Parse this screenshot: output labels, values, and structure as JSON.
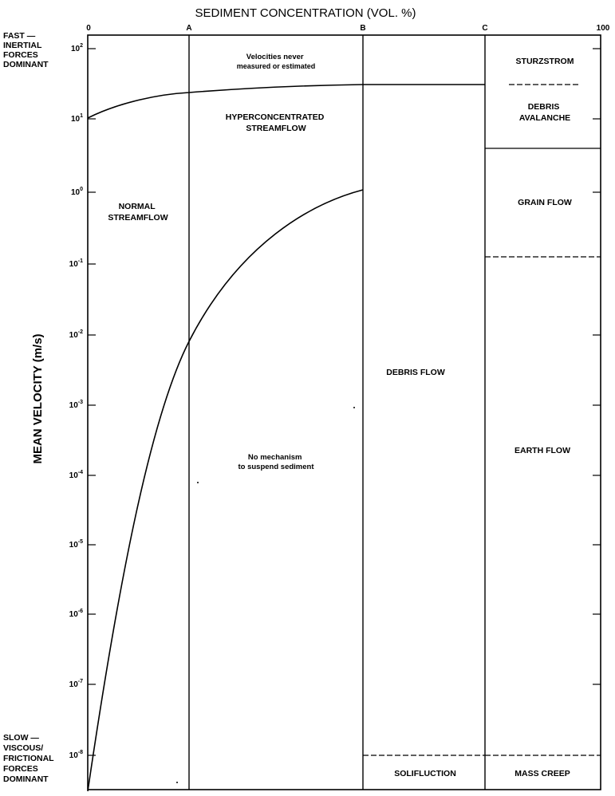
{
  "diagram": {
    "x_axis_title": "SEDIMENT CONCENTRATION (VOL. %)",
    "y_axis_title": "MEAN VELOCITY (m/s)",
    "x_ticks": [
      "0",
      "A",
      "B",
      "C",
      "100"
    ],
    "y_ticks": [
      {
        "base": "10",
        "exp": "2"
      },
      {
        "base": "10",
        "exp": "1"
      },
      {
        "base": "10",
        "exp": "0"
      },
      {
        "base": "10",
        "exp": "-1"
      },
      {
        "base": "10",
        "exp": "-2"
      },
      {
        "base": "10",
        "exp": "-3"
      },
      {
        "base": "10",
        "exp": "-4"
      },
      {
        "base": "10",
        "exp": "-5"
      },
      {
        "base": "10",
        "exp": "-6"
      },
      {
        "base": "10",
        "exp": "-7"
      },
      {
        "base": "10",
        "exp": "-8"
      }
    ],
    "top_note": [
      "FAST —",
      "INERTIAL",
      "FORCES",
      "DOMINANT"
    ],
    "bottom_note": [
      "SLOW —",
      "VISCOUS/",
      "FRICTIONAL",
      "FORCES",
      "DOMINANT"
    ],
    "regions": {
      "velocities_never": [
        "Velocities never",
        "measured or estimated"
      ],
      "hyperconcentrated": [
        "HYPERCONCENTRATED",
        "STREAMFLOW"
      ],
      "normal_streamflow": [
        "NORMAL",
        "STREAMFLOW"
      ],
      "no_mechanism": [
        "No mechanism",
        "to suspend sediment"
      ],
      "debris_flow": "DEBRIS FLOW",
      "solifluction": "SOLIFLUCTION",
      "sturzstrom": "STURZSTROM",
      "debris_avalanche": [
        "DEBRIS",
        "AVALANCHE"
      ],
      "grain_flow": "GRAIN FLOW",
      "earth_flow": "EARTH FLOW",
      "mass_creep": "MASS CREEP"
    }
  }
}
